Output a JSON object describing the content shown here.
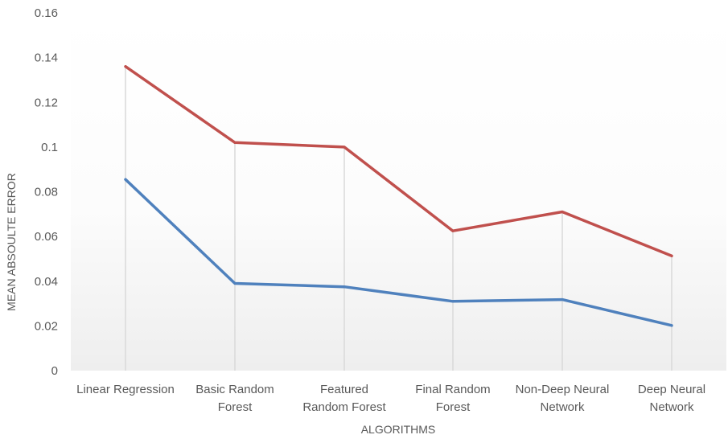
{
  "chart_data": {
    "type": "line",
    "title": "",
    "xlabel": "ALGORITHMS",
    "ylabel": "MEAN ABSOULTE ERROR",
    "ylim": [
      0,
      0.16
    ],
    "yticks": [
      "0",
      "0.02",
      "0.04",
      "0.06",
      "0.08",
      "0.1",
      "0.12",
      "0.14",
      "0.16"
    ],
    "ytick_values": [
      0,
      0.02,
      0.04,
      0.06,
      0.08,
      0.1,
      0.12,
      0.14,
      0.16
    ],
    "categories": [
      [
        "Linear Regression"
      ],
      [
        "Basic Random",
        "Forest"
      ],
      [
        "Featured",
        "Random Forest"
      ],
      [
        "Final Random",
        "Forest"
      ],
      [
        "Non-Deep Neural",
        "Network"
      ],
      [
        "Deep Neural",
        "Network"
      ]
    ],
    "series": [
      {
        "color": "#c0504d",
        "values": [
          0.136,
          0.102,
          0.1,
          0.0625,
          0.071,
          0.0513
        ]
      },
      {
        "color": "#4f81bd",
        "values": [
          0.0855,
          0.039,
          0.0375,
          0.031,
          0.0318,
          0.0202
        ]
      }
    ],
    "drop_lines": true,
    "legend": "none",
    "grid": false
  }
}
